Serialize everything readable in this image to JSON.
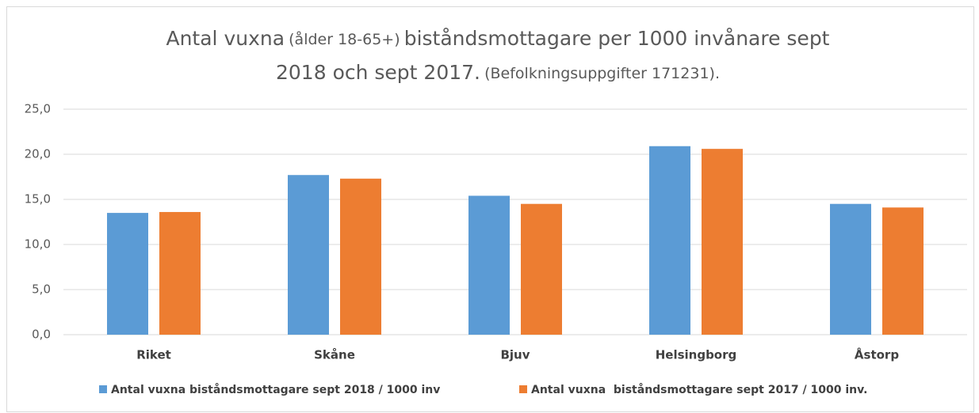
{
  "chart_data": {
    "type": "bar",
    "title": [
      "Antal vuxna",
      "(ålder 18-65+)",
      "biståndsmottagare per 1000 invånare sept",
      "2018 och sept 2017.",
      "(Befolkningsuppgifter 171231)."
    ],
    "categories": [
      "Riket",
      "Skåne",
      "Bjuv",
      "Helsingborg",
      "Åstorp"
    ],
    "series": [
      {
        "name": "Antal vuxna biståndsmottagare sept 2018 / 1000 inv",
        "color": "#5b9bd5",
        "values": [
          13.5,
          17.7,
          15.4,
          20.9,
          14.5
        ]
      },
      {
        "name": "Antal vuxna  biståndsmottagare sept 2017 / 1000 inv.",
        "color": "#ed7d31",
        "values": [
          13.6,
          17.3,
          14.5,
          20.6,
          14.1
        ]
      }
    ],
    "ylim": [
      0,
      25
    ],
    "yticks": [
      {
        "value": 0,
        "label": "0,0"
      },
      {
        "value": 5,
        "label": "5,0"
      },
      {
        "value": 10,
        "label": "10,0"
      },
      {
        "value": 15,
        "label": "15,0"
      },
      {
        "value": 20,
        "label": "20,0"
      },
      {
        "value": 25,
        "label": "25,0"
      }
    ],
    "grid": true,
    "legend": "bottom"
  }
}
